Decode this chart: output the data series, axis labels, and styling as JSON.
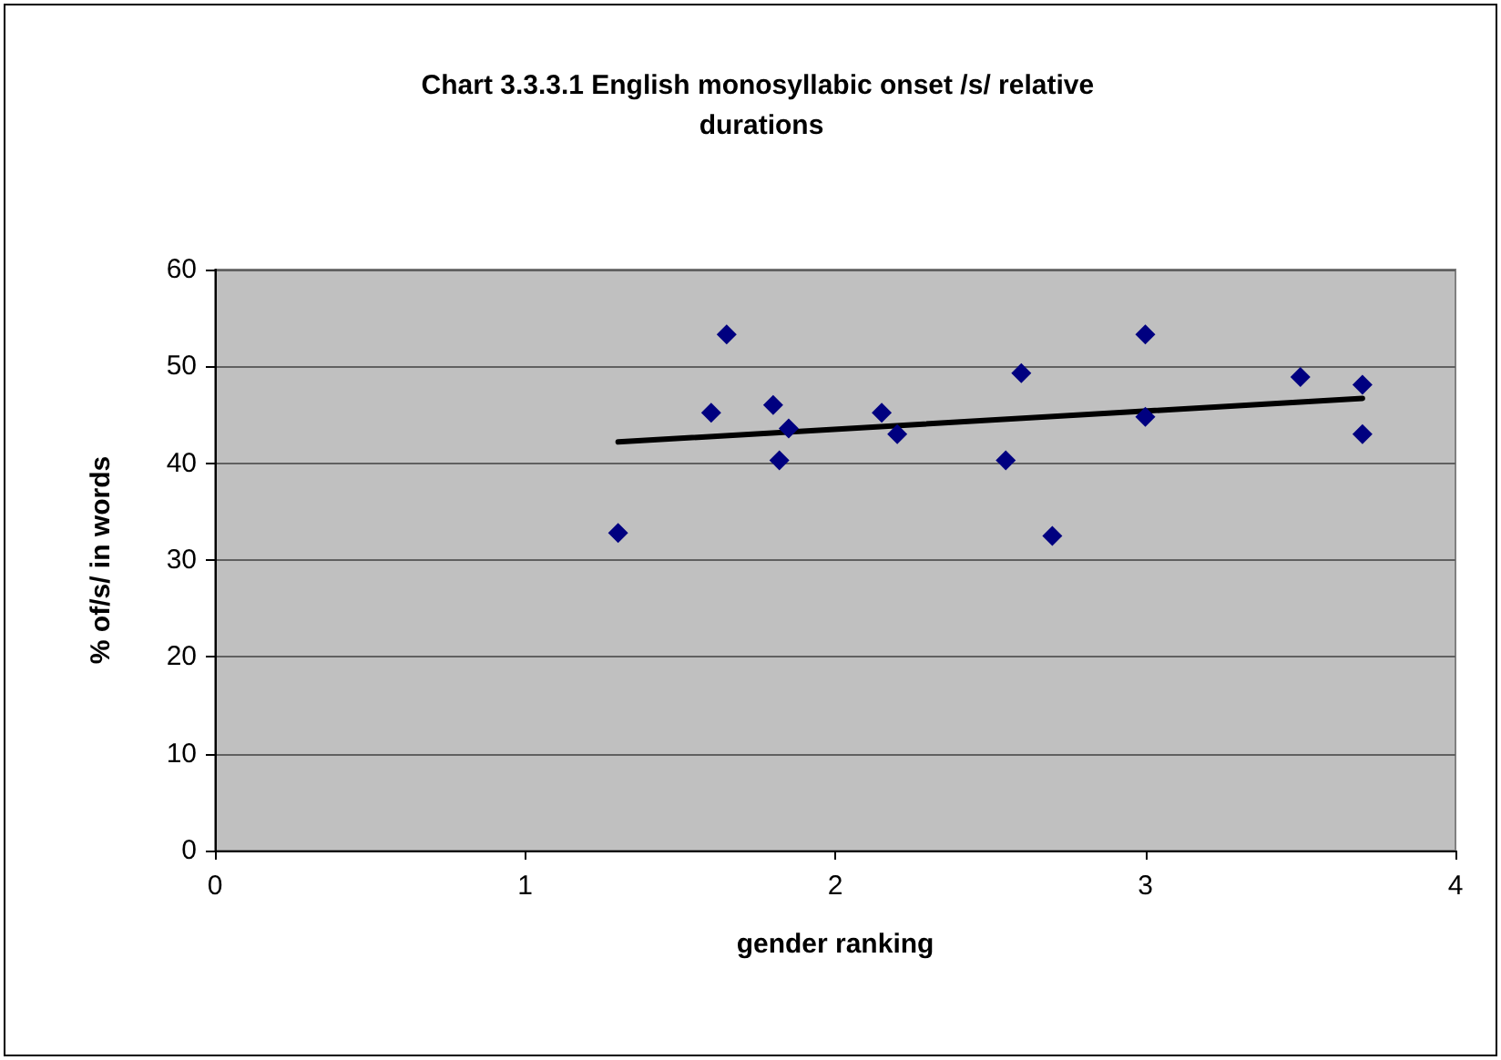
{
  "chart_data": {
    "type": "scatter",
    "title": "Chart 3.3.3.1 English monosyllabic onset /s/ relative durations",
    "xlabel": "gender ranking",
    "ylabel": "% of/s/ in words",
    "marker": "diamond",
    "grid": "y",
    "xlim": [
      0,
      4
    ],
    "xticks": [
      0,
      1,
      2,
      3,
      4
    ],
    "ylim": [
      0,
      60
    ],
    "yticks": [
      0,
      10,
      20,
      30,
      40,
      50,
      60
    ],
    "series": [
      {
        "color": "#000080",
        "x": [
          1.3,
          1.6,
          1.65,
          1.8,
          1.82,
          1.85,
          2.15,
          2.2,
          2.55,
          2.6,
          2.7,
          3.0,
          3.0,
          3.5,
          3.7,
          3.7
        ],
        "values": [
          32.8,
          45.2,
          53.3,
          46,
          40.3,
          43.6,
          45.2,
          43,
          40.3,
          49.3,
          32.5,
          53.3,
          44.8,
          48.9,
          48.1,
          43
        ]
      },
      {
        "type": "line",
        "color": "#000000",
        "marker": "none",
        "x": [
          1.3,
          3.7
        ],
        "values": [
          42.2,
          46.7
        ]
      }
    ]
  }
}
